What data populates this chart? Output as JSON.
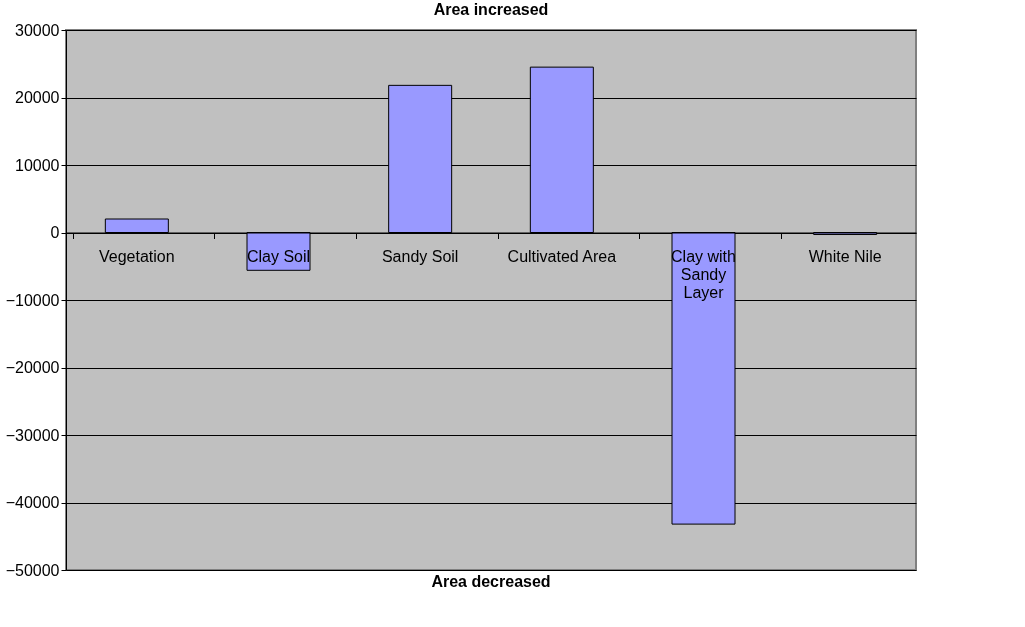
{
  "chart_data": {
    "type": "bar",
    "title": "Area increased",
    "annotations": [
      "Area decreased"
    ],
    "categories": [
      "Vegetation",
      "Clay Soil",
      "Sandy Soil",
      "Cultivated Area",
      "Clay with Sandy Layer",
      "White Nile"
    ],
    "values": [
      2000,
      -5600,
      21800,
      24500,
      -43200,
      -300
    ],
    "color": "#9999ff",
    "ylim": [
      -50000,
      30000
    ],
    "yticks": [
      -50000,
      -40000,
      -30000,
      -20000,
      -10000,
      0,
      10000,
      20000,
      30000
    ],
    "grid": "y"
  }
}
